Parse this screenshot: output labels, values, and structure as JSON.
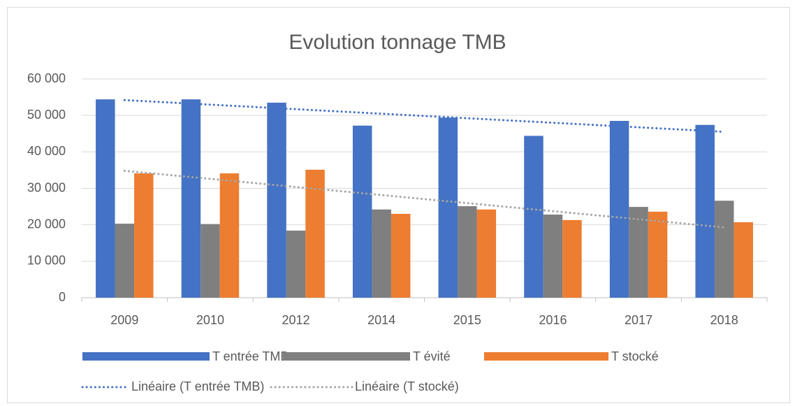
{
  "chart_data": {
    "type": "bar",
    "title": "Evolution tonnage TMB",
    "categories": [
      "2009",
      "2010",
      "2012",
      "2014",
      "2015",
      "2016",
      "2017",
      "2018"
    ],
    "series": [
      {
        "name": "T entrée TMB",
        "color": "#4472c4",
        "values": [
          54400,
          54400,
          53500,
          47200,
          49400,
          44400,
          48500,
          47400
        ]
      },
      {
        "name": "T évité",
        "color": "#7f7f7f",
        "values": [
          20300,
          20200,
          18400,
          24200,
          25100,
          22800,
          24900,
          26600
        ]
      },
      {
        "name": "T stocké",
        "color": "#ed7d31",
        "values": [
          34100,
          34100,
          35100,
          23000,
          24200,
          21300,
          23600,
          20700
        ]
      },
      {
        "name": "Linéaire (T entrée TMB)",
        "color": "#4472c4",
        "line_style": "dotted",
        "values": [
          54200,
          52960,
          51710,
          50470,
          49230,
          47990,
          46740,
          45500
        ]
      },
      {
        "name": "Linéaire (T stocké)",
        "color": "#a5a5a5",
        "line_style": "dotted",
        "values": [
          34800,
          32590,
          30370,
          28160,
          25940,
          23730,
          21510,
          19300
        ]
      }
    ],
    "ylim": [
      0,
      60000
    ],
    "yticks": [
      0,
      {
        "value": 10000,
        "label": "10 000"
      },
      {
        "value": 20000,
        "label": "20 000"
      },
      {
        "value": 30000,
        "label": "30 000"
      },
      {
        "value": 40000,
        "label": "40 000"
      },
      {
        "value": 50000,
        "label": "50 000"
      },
      {
        "value": 60000,
        "label": "60 000"
      }
    ],
    "grid": true,
    "legend": "bottom"
  }
}
